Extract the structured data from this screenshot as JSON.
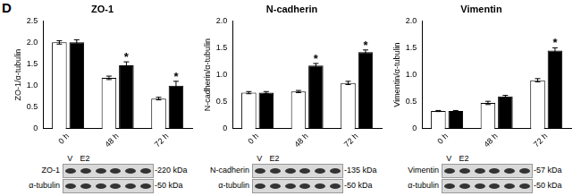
{
  "panel_label": "D",
  "chart_data": [
    {
      "type": "bar",
      "title": "ZO-1",
      "y_label": "ZO-1/α-tubulin",
      "categories": [
        "0 h",
        "48 h",
        "72 h"
      ],
      "series": [
        {
          "name": "V",
          "color": "#ffffff",
          "values": [
            2.0,
            1.18,
            0.7
          ],
          "errors": [
            0.04,
            0.04,
            0.03
          ]
        },
        {
          "name": "E2",
          "color": "#000000",
          "values": [
            2.0,
            1.47,
            1.0
          ],
          "errors": [
            0.06,
            0.08,
            0.1
          ]
        }
      ],
      "annotations": [
        {
          "series": "E2",
          "category": "48 h",
          "text": "*"
        },
        {
          "series": "E2",
          "category": "72 h",
          "text": "*"
        }
      ],
      "ylim": [
        0,
        2.5
      ],
      "yticks": [
        0,
        0.5,
        {
          "value": 1,
          "label": "1.0"
        },
        1.5,
        {
          "value": 2,
          "label": "2.0"
        },
        2.5
      ],
      "grid": false
    },
    {
      "type": "bar",
      "title": "N-cadherin",
      "y_label": "N-cadherin/α-tubulin",
      "categories": [
        "0 h",
        "48 h",
        "72 h"
      ],
      "series": [
        {
          "name": "V",
          "color": "#ffffff",
          "values": [
            0.67,
            0.69,
            0.85
          ],
          "errors": [
            0.02,
            0.02,
            0.03
          ]
        },
        {
          "name": "E2",
          "color": "#000000",
          "values": [
            0.67,
            1.17,
            1.42
          ],
          "errors": [
            0.02,
            0.04,
            0.04
          ]
        }
      ],
      "annotations": [
        {
          "series": "E2",
          "category": "48 h",
          "text": "*"
        },
        {
          "series": "E2",
          "category": "72 h",
          "text": "*"
        }
      ],
      "ylim": [
        0,
        2.0
      ],
      "yticks": [
        0,
        0.5,
        {
          "value": 1,
          "label": "1.0"
        },
        1.5,
        {
          "value": 2,
          "label": "2.0"
        }
      ],
      "grid": false
    },
    {
      "type": "bar",
      "title": "Vimentin",
      "y_label": "Vimentin/α-tubulin",
      "categories": [
        "0 h",
        "48 h",
        "72 h"
      ],
      "series": [
        {
          "name": "V",
          "color": "#ffffff",
          "values": [
            0.33,
            0.48,
            0.9
          ],
          "errors": [
            0.01,
            0.03,
            0.03
          ]
        },
        {
          "name": "E2",
          "color": "#000000",
          "values": [
            0.33,
            0.6,
            1.45
          ],
          "errors": [
            0.01,
            0.02,
            0.05
          ]
        }
      ],
      "annotations": [
        {
          "series": "E2",
          "category": "72 h",
          "text": "*"
        }
      ],
      "ylim": [
        0,
        2.0
      ],
      "yticks": [
        0,
        0.5,
        {
          "value": 1,
          "label": "1.0"
        },
        1.5,
        {
          "value": 2,
          "label": "2.0"
        }
      ],
      "grid": false
    }
  ],
  "blots": [
    {
      "lane_labels": [
        "V",
        "E2"
      ],
      "rows": [
        {
          "protein": "ZO-1",
          "size": "-220 kDa"
        },
        {
          "protein": "α-tubulin",
          "size": "-50 kDa"
        }
      ]
    },
    {
      "lane_labels": [
        "V",
        "E2"
      ],
      "rows": [
        {
          "protein": "N-cadherin",
          "size": "-135 kDa"
        },
        {
          "protein": "α-tubulin",
          "size": "-50 kDa"
        }
      ]
    },
    {
      "lane_labels": [
        "V",
        "E2"
      ],
      "rows": [
        {
          "protein": "Vimentin",
          "size": "-57 kDa"
        },
        {
          "protein": "α-tubulin",
          "size": "-50 kDa"
        }
      ]
    }
  ]
}
